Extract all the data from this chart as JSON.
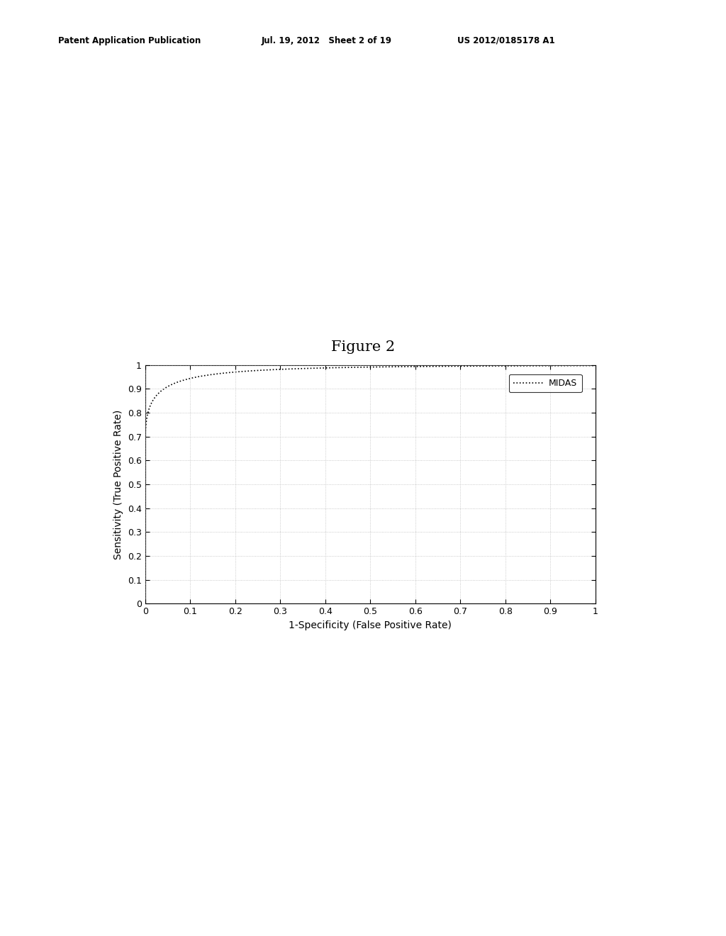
{
  "figure_title": "Figure 2",
  "xlabel": "1-Specificity (False Positive Rate)",
  "ylabel": "Sensitivity (True Positive Rate)",
  "legend_label": "MIDAS",
  "xlim": [
    0,
    1
  ],
  "ylim": [
    0,
    1
  ],
  "xticks": [
    0,
    0.1,
    0.2,
    0.3,
    0.4,
    0.5,
    0.6,
    0.7,
    0.8,
    0.9,
    1
  ],
  "yticks": [
    0,
    0.1,
    0.2,
    0.3,
    0.4,
    0.5,
    0.6,
    0.7,
    0.8,
    0.9,
    1
  ],
  "header_left": "Patent Application Publication",
  "header_mid": "Jul. 19, 2012   Sheet 2 of 19",
  "header_right": "US 2012/0185178 A1",
  "line_color": "#000000",
  "bg_color": "#ffffff",
  "fig_width": 10.24,
  "fig_height": 13.2,
  "roc_a": 0.67,
  "roc_b": 5.0,
  "roc_c": 0.45
}
